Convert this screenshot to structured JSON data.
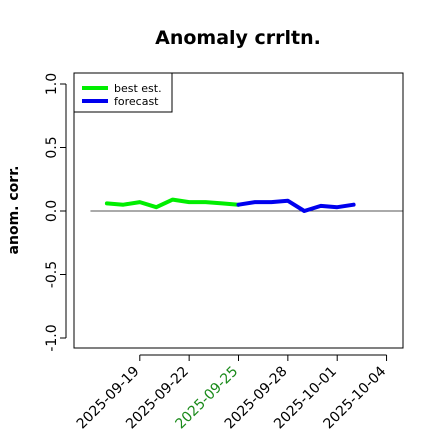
{
  "chart_data": {
    "type": "line",
    "title": "Anomaly crrltn.",
    "xlabel": "",
    "ylabel": "anom. corr.",
    "ylim": [
      -1.0,
      1.0
    ],
    "xlim": [
      "2025-09-15",
      "2025-10-05"
    ],
    "yticks": [
      "-1.0",
      "-0.5",
      "0.0",
      "0.5",
      "1.0"
    ],
    "xticks": [
      {
        "date": "2025-09-19",
        "label": "2025-09-19",
        "color": "#000000"
      },
      {
        "date": "2025-09-22",
        "label": "2025-09-22",
        "color": "#000000"
      },
      {
        "date": "2025-09-25",
        "label": "2025-09-25",
        "color": "#1a8a1a"
      },
      {
        "date": "2025-09-28",
        "label": "2025-09-28",
        "color": "#000000"
      },
      {
        "date": "2025-10-01",
        "label": "2025-10-01",
        "color": "#000000"
      },
      {
        "date": "2025-10-04",
        "label": "2025-10-04",
        "color": "#000000"
      }
    ],
    "reference_line": 0.0,
    "legend_position": "top-left",
    "series": [
      {
        "name": "best est.",
        "color": "#00ee00",
        "x": [
          "2025-09-17",
          "2025-09-18",
          "2025-09-19",
          "2025-09-20",
          "2025-09-21",
          "2025-09-22",
          "2025-09-23",
          "2025-09-24",
          "2025-09-25"
        ],
        "values": [
          0.06,
          0.05,
          0.07,
          0.03,
          0.09,
          0.07,
          0.07,
          0.06,
          0.05
        ]
      },
      {
        "name": "forecast",
        "color": "#0000ee",
        "x": [
          "2025-09-25",
          "2025-09-26",
          "2025-09-27",
          "2025-09-28",
          "2025-09-29",
          "2025-09-30",
          "2025-10-01",
          "2025-10-02"
        ],
        "values": [
          0.05,
          0.07,
          0.07,
          0.08,
          0.0,
          0.04,
          0.03,
          0.05
        ]
      }
    ]
  }
}
